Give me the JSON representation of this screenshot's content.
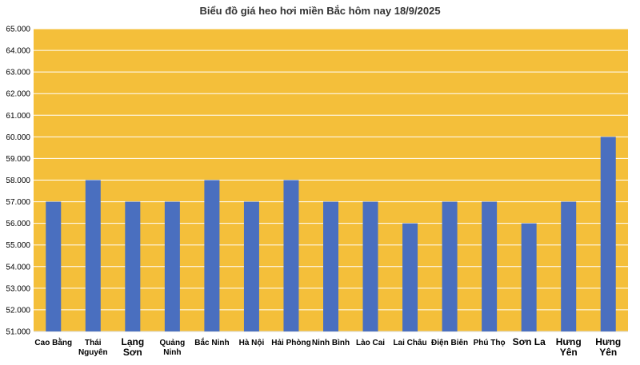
{
  "chart_data": {
    "type": "bar",
    "title": "Biểu đồ giá heo hơi miền Bắc hôm nay 18/9/2025",
    "xlabel": "",
    "ylabel": "",
    "ylim": [
      51000,
      65000
    ],
    "ytick_step": 1000,
    "ytick_labels": [
      "51.000",
      "52.000",
      "53.000",
      "54.000",
      "55.000",
      "56.000",
      "57.000",
      "58.000",
      "59.000",
      "60.000",
      "61.000",
      "62.000",
      "63.000",
      "64.000",
      "65.000"
    ],
    "categories": [
      [
        "Cao Bằng"
      ],
      [
        "Thái",
        "Nguyên"
      ],
      [
        "Lạng",
        "Sơn"
      ],
      [
        "Quảng",
        "Ninh"
      ],
      [
        "Bắc Ninh"
      ],
      [
        "Hà Nội"
      ],
      [
        "Hải Phòng"
      ],
      [
        "Ninh Bình"
      ],
      [
        "Lào Cai"
      ],
      [
        "Lai Châu"
      ],
      [
        "Điện Biên"
      ],
      [
        "Phú Thọ"
      ],
      [
        "Sơn La"
      ],
      [
        "Hưng",
        "Yên"
      ],
      [
        "Hưng",
        "Yên"
      ]
    ],
    "category_large": [
      false,
      false,
      true,
      false,
      false,
      false,
      false,
      false,
      false,
      false,
      false,
      false,
      true,
      true,
      true
    ],
    "values": [
      57000,
      58000,
      57000,
      57000,
      58000,
      57000,
      58000,
      57000,
      57000,
      56000,
      57000,
      57000,
      56000,
      57000,
      60000
    ],
    "grid": true,
    "legend": "none"
  },
  "colors": {
    "plot_bg": "#F4BF3A",
    "bar": "#4A6FBF",
    "grid": "#FFFFFF",
    "axis": "#D9D9D9"
  }
}
